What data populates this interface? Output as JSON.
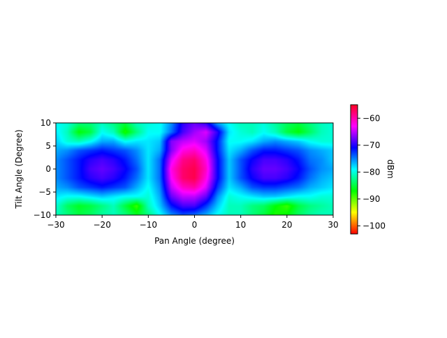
{
  "chart_data": {
    "type": "heatmap",
    "title": "",
    "xlabel": "Pan Angle (degree)",
    "ylabel": "Tilt Angle (Degree)",
    "xlim": [
      -30,
      30
    ],
    "ylim": [
      -10,
      10
    ],
    "xticks": [
      -30,
      -20,
      -10,
      0,
      10,
      20,
      30
    ],
    "yticks": [
      -10,
      -5,
      0,
      5,
      10
    ],
    "colorbar": {
      "label": "dBm",
      "range": [
        -103,
        -55
      ],
      "ticks": [
        -60,
        -70,
        -80,
        -90,
        -100
      ],
      "colormap": "hsv (red → yellow → green → cyan → blue → magenta)"
    },
    "grid": false,
    "x": [
      -30,
      -27.5,
      -25,
      -22.5,
      -20,
      -17.5,
      -15,
      -12.5,
      -10,
      -7.5,
      -5,
      -2.5,
      0,
      2.5,
      5,
      7.5,
      10,
      12.5,
      15,
      17.5,
      20,
      22.5,
      25,
      27.5,
      30
    ],
    "y": [
      10,
      8,
      6,
      4,
      2,
      0,
      -2,
      -4,
      -6,
      -8,
      -10
    ],
    "z": [
      [
        -78,
        -79,
        -82,
        -82,
        -80,
        -82,
        -84,
        -80,
        -79,
        -78,
        -74,
        -68,
        -66,
        -68,
        -75,
        -78,
        -80,
        -80,
        -79,
        -81,
        -83,
        -84,
        -82,
        -80,
        -79
      ],
      [
        -77,
        -80,
        -86,
        -84,
        -78,
        -80,
        -87,
        -82,
        -78,
        -78,
        -73,
        -67,
        -64,
        -62,
        -68,
        -77,
        -79,
        -80,
        -78,
        -80,
        -84,
        -86,
        -83,
        -80,
        -79
      ],
      [
        -76,
        -79,
        -80,
        -78,
        -75,
        -75,
        -78,
        -77,
        -77,
        -76,
        -65,
        -63,
        -62,
        -64,
        -70,
        -78,
        -78,
        -77,
        -75,
        -74,
        -75,
        -76,
        -78,
        -79,
        -79
      ],
      [
        -75,
        -74,
        -72,
        -71,
        -70,
        -71,
        -72,
        -74,
        -77,
        -75,
        -65,
        -60,
        -59,
        -62,
        -70,
        -77,
        -75,
        -72,
        -70,
        -70,
        -71,
        -72,
        -74,
        -75,
        -76
      ],
      [
        -74,
        -72,
        -70,
        -68,
        -67,
        -68,
        -70,
        -73,
        -77,
        -73,
        -62,
        -57,
        -56,
        -60,
        -69,
        -76,
        -72,
        -69,
        -67,
        -67,
        -68,
        -70,
        -73,
        -74,
        -76
      ],
      [
        -74,
        -72,
        -70,
        -67,
        -66,
        -67,
        -69,
        -72,
        -77,
        -73,
        -60,
        -56,
        -55,
        -59,
        -69,
        -76,
        -72,
        -68,
        -66,
        -66,
        -67,
        -69,
        -72,
        -74,
        -75
      ],
      [
        -74,
        -72,
        -70,
        -68,
        -67,
        -68,
        -70,
        -73,
        -77,
        -73,
        -61,
        -56,
        -55,
        -60,
        -69,
        -76,
        -72,
        -69,
        -67,
        -67,
        -68,
        -70,
        -73,
        -75,
        -76
      ],
      [
        -75,
        -74,
        -72,
        -71,
        -70,
        -71,
        -72,
        -75,
        -78,
        -74,
        -63,
        -59,
        -58,
        -62,
        -71,
        -77,
        -75,
        -72,
        -71,
        -71,
        -72,
        -73,
        -75,
        -76,
        -77
      ],
      [
        -77,
        -78,
        -78,
        -77,
        -76,
        -77,
        -78,
        -78,
        -79,
        -75,
        -66,
        -63,
        -63,
        -66,
        -74,
        -79,
        -78,
        -77,
        -76,
        -76,
        -77,
        -78,
        -78,
        -79,
        -79
      ],
      [
        -79,
        -83,
        -85,
        -84,
        -82,
        -80,
        -84,
        -88,
        -80,
        -76,
        -70,
        -67,
        -67,
        -71,
        -76,
        -80,
        -80,
        -82,
        -83,
        -86,
        -88,
        -84,
        -82,
        -81,
        -80
      ],
      [
        -80,
        -82,
        -84,
        -83,
        -81,
        -80,
        -82,
        -85,
        -82,
        -78,
        -74,
        -72,
        -73,
        -75,
        -78,
        -80,
        -80,
        -82,
        -84,
        -87,
        -86,
        -83,
        -81,
        -80,
        -80
      ]
    ]
  }
}
